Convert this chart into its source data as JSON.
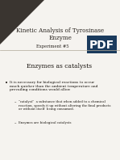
{
  "title_line1": "Kinetic Analysis of Tyrosinase",
  "title_line2": "Enzyme",
  "subtitle": "Experiment #5",
  "pdf_label": "PDF",
  "section_header": "Enzymes as catalysts",
  "bullet1": "It is necessary for biological reactions to occur\nmuch quicker than the ambient temperature and\nprevailing conditions would allow",
  "sub_bullet1": "\"catalyst\"  a substance that when added to a chemical\nreaction, speeds it up without altering the final products\nor without itself  being consumed.",
  "sub_bullet2": "Enzymes are biological catalysts",
  "bg_color": "#f5f3ef",
  "title_bg": "#f5f3ef",
  "dark_triangle_color": "#3a3530",
  "pdf_box_color": "#1a3a5c",
  "pdf_text_color": "#ffffff",
  "title_text_color": "#2a2520",
  "body_text_color": "#1a1510",
  "section_header_color": "#1a1510"
}
